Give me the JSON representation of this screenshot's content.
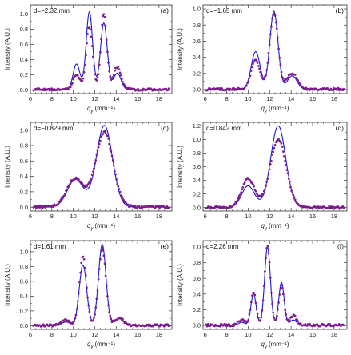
{
  "figure": {
    "colors": {
      "theory": "#1a1adb",
      "experiment": "#7d1a8c",
      "frame": "#333333"
    }
  },
  "chart_data": [
    {
      "type": "line",
      "panel": "(a)",
      "annotation": "d=−2.32 mm",
      "xlabel": "q",
      "xlabel_sub": "y",
      "xlabel_unit": "(mm⁻¹)",
      "ylabel": "Intensity (A.U.)",
      "xlim": [
        6,
        19.2
      ],
      "ylim": [
        -0.05,
        1.12
      ],
      "xticks": [
        6,
        8,
        10,
        12,
        14,
        16,
        18
      ],
      "yticks": [
        0.0,
        0.2,
        0.4,
        0.6,
        0.8,
        1.0
      ],
      "theory": [
        [
          10.3,
          0.34,
          0.32
        ],
        [
          11.5,
          1.03,
          0.3
        ],
        [
          12.85,
          0.88,
          0.32
        ],
        [
          14.1,
          0.22,
          0.35
        ]
      ],
      "experiment": [
        [
          10.3,
          0.19,
          0.32
        ],
        [
          11.5,
          0.83,
          0.3
        ],
        [
          12.85,
          1.0,
          0.28
        ],
        [
          14.1,
          0.3,
          0.35
        ]
      ]
    },
    {
      "type": "line",
      "panel": "(b)",
      "annotation": "d=−1.65 mm",
      "xlabel": "q",
      "xlabel_sub": "y",
      "xlabel_unit": "(mm⁻¹)",
      "ylabel": "Intensity (A.U.)",
      "xlim": [
        5.8,
        19.2
      ],
      "ylim": [
        -0.05,
        1.05
      ],
      "xticks": [
        6,
        8,
        10,
        12,
        14,
        16,
        18
      ],
      "yticks": [
        0.0,
        0.2,
        0.4,
        0.6,
        0.8,
        1.0
      ],
      "theory": [
        [
          10.7,
          0.47,
          0.42
        ],
        [
          12.4,
          0.97,
          0.38
        ],
        [
          14.1,
          0.17,
          0.45
        ]
      ],
      "experiment": [
        [
          10.7,
          0.36,
          0.42
        ],
        [
          12.4,
          0.93,
          0.4
        ],
        [
          14.1,
          0.2,
          0.45
        ]
      ]
    },
    {
      "type": "line",
      "panel": "(c)",
      "annotation": "d=−0.829 mm",
      "xlabel": "q",
      "xlabel_sub": "y",
      "xlabel_unit": "(mm⁻¹)",
      "ylabel": "Intensity (A.U.)",
      "xlim": [
        6,
        19.2
      ],
      "ylim": [
        -0.05,
        1.1
      ],
      "xticks": [
        6,
        8,
        10,
        12,
        14,
        16,
        18
      ],
      "yticks": [
        0.0,
        0.2,
        0.4,
        0.6,
        0.8,
        1.0
      ],
      "theory": [
        [
          10.2,
          0.36,
          0.75
        ],
        [
          12.9,
          1.06,
          0.75
        ]
      ],
      "experiment": [
        [
          10.2,
          0.37,
          0.8
        ],
        [
          12.9,
          0.97,
          0.8
        ]
      ]
    },
    {
      "type": "line",
      "panel": "(d)",
      "annotation": "d=0.842 mm",
      "xlabel": "q",
      "xlabel_sub": "y",
      "xlabel_unit": "(mm⁻¹)",
      "ylabel": "Intensity (A.U.)",
      "xlim": [
        5.8,
        19.2
      ],
      "ylim": [
        -0.05,
        1.25
      ],
      "xticks": [
        6,
        8,
        10,
        12,
        14,
        16,
        18
      ],
      "yticks": [
        0.0,
        0.2,
        0.4,
        0.6,
        0.8,
        1.0,
        1.2
      ],
      "theory": [
        [
          10.0,
          0.32,
          0.6
        ],
        [
          12.8,
          1.2,
          0.7
        ]
      ],
      "experiment": [
        [
          10.0,
          0.42,
          0.6
        ],
        [
          12.8,
          1.0,
          0.75
        ]
      ]
    },
    {
      "type": "line",
      "panel": "(e)",
      "annotation": "d=1.61 mm",
      "xlabel": "q",
      "xlabel_sub": "y",
      "xlabel_unit": "(mm⁻¹)",
      "ylabel": "Intensity (A.U.)",
      "xlim": [
        6,
        19.2
      ],
      "ylim": [
        -0.05,
        1.15
      ],
      "xticks": [
        6,
        8,
        10,
        12,
        14,
        16,
        18
      ],
      "yticks": [
        0.0,
        0.2,
        0.4,
        0.6,
        0.8,
        1.0
      ],
      "theory": [
        [
          9.3,
          0.05,
          0.4
        ],
        [
          10.9,
          0.82,
          0.35
        ],
        [
          12.7,
          1.1,
          0.35
        ],
        [
          14.3,
          0.1,
          0.4
        ]
      ],
      "experiment": [
        [
          9.3,
          0.07,
          0.4
        ],
        [
          10.9,
          0.93,
          0.33
        ],
        [
          12.7,
          1.04,
          0.35
        ],
        [
          14.3,
          0.1,
          0.4
        ]
      ]
    },
    {
      "type": "line",
      "panel": "(f)",
      "annotation": "d=2.26 mm",
      "xlabel": "q",
      "xlabel_sub": "y",
      "xlabel_unit": "(mm⁻¹)",
      "ylabel": "Intensity (A.U.)",
      "xlim": [
        5.8,
        19.2
      ],
      "ylim": [
        -0.05,
        1.08
      ],
      "xticks": [
        6,
        8,
        10,
        12,
        14,
        16,
        18
      ],
      "yticks": [
        0.0,
        0.2,
        0.4,
        0.6,
        0.8,
        1.0
      ],
      "theory": [
        [
          9.4,
          0.04,
          0.3
        ],
        [
          10.5,
          0.4,
          0.25
        ],
        [
          11.8,
          1.0,
          0.27
        ],
        [
          13.1,
          0.55,
          0.25
        ],
        [
          14.2,
          0.07,
          0.3
        ]
      ],
      "experiment": [
        [
          9.4,
          0.07,
          0.3
        ],
        [
          10.5,
          0.42,
          0.25
        ],
        [
          11.8,
          1.0,
          0.27
        ],
        [
          13.1,
          0.5,
          0.25
        ],
        [
          14.2,
          0.12,
          0.3
        ]
      ]
    }
  ]
}
